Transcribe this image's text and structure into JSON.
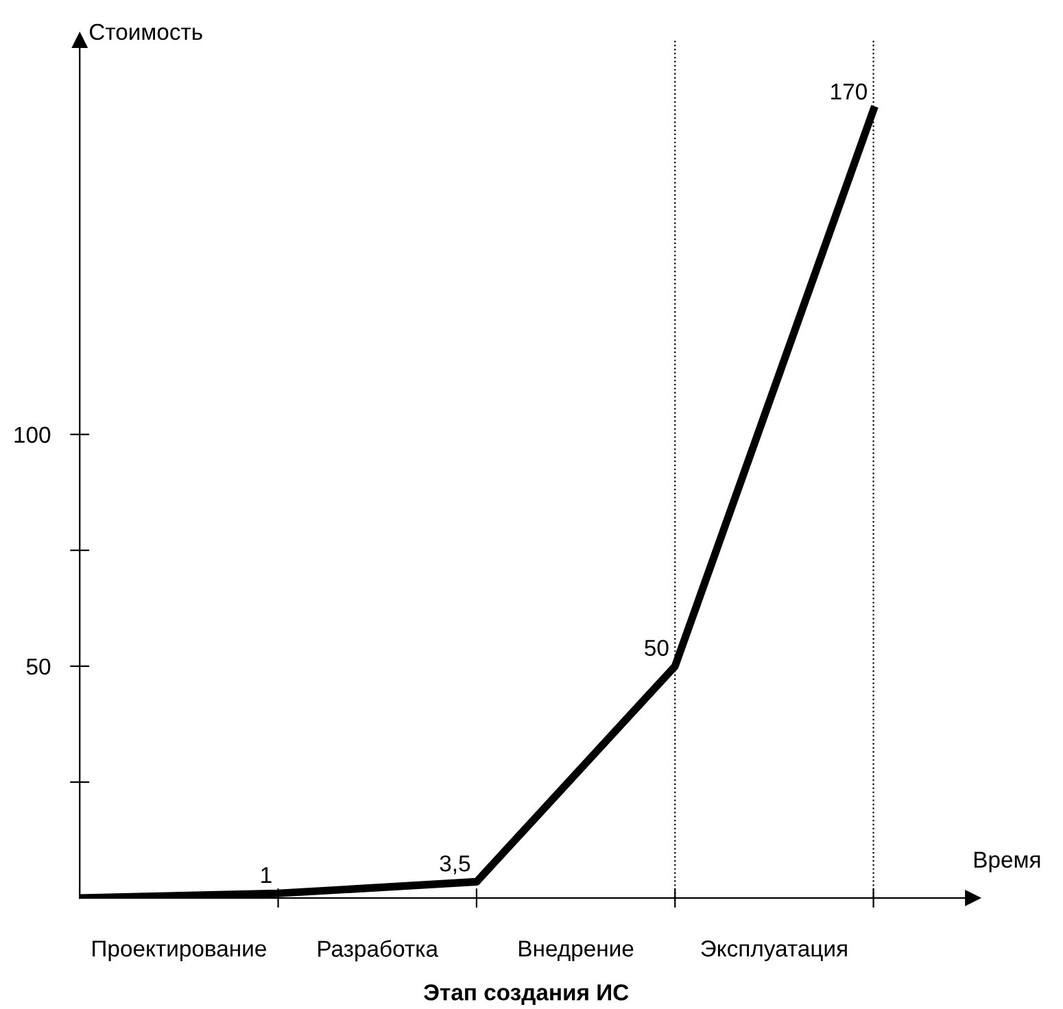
{
  "chart_data": {
    "type": "line",
    "ylabel": "Стоимость",
    "xlabel": "Этап создания ИС",
    "annotations": [
      "Время",
      "Проектирование",
      "Разработка",
      "Внедрение",
      "Эксплуатация"
    ],
    "categories": [
      null,
      null,
      null,
      null,
      null
    ],
    "series": [
      {
        "color": "#000000",
        "values": [
          0,
          1,
          3.5,
          50,
          170
        ],
        "value_labels": [
          null,
          "1",
          "3,5",
          "50",
          "170"
        ]
      }
    ],
    "ylim": [
      0,
      185
    ],
    "yticks": [
      {
        "value": 25,
        "label": null
      },
      50,
      {
        "value": 75,
        "label": null
      },
      100
    ],
    "grid": false,
    "legend": false,
    "marker": "none",
    "line_style": "solid"
  }
}
